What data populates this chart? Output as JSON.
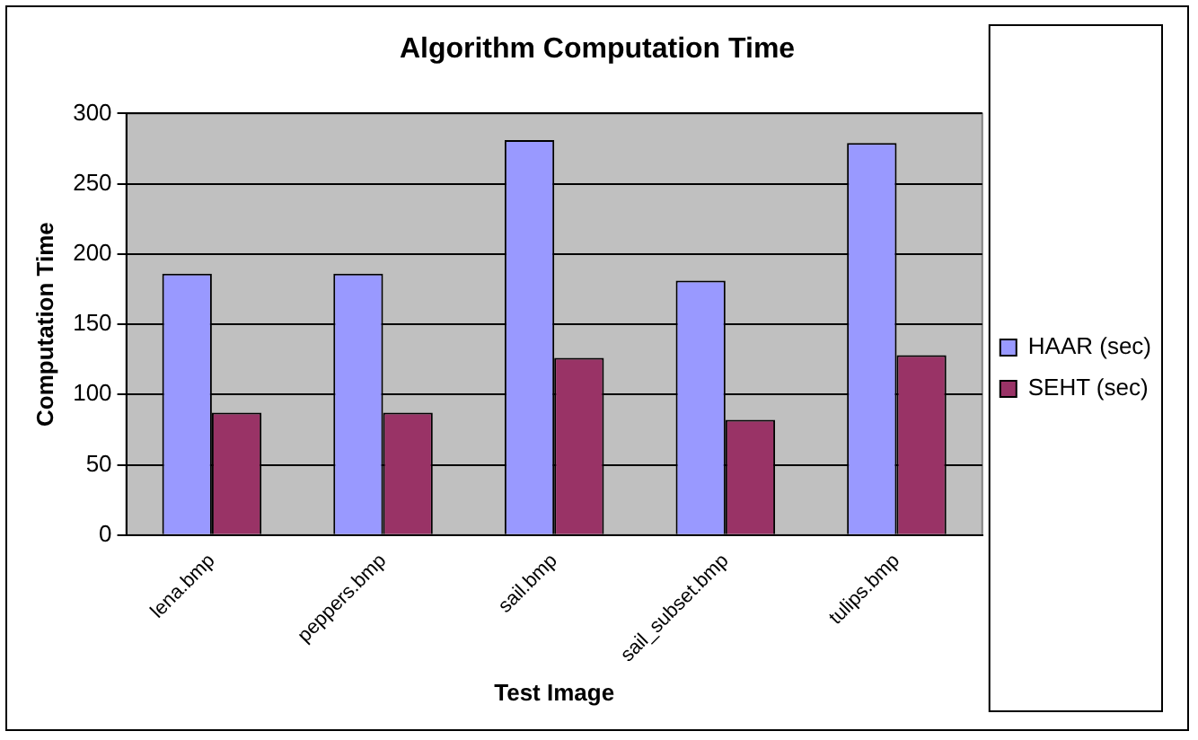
{
  "chart_data": {
    "type": "bar",
    "title": "Algorithm Computation Time",
    "xlabel": "Test Image",
    "ylabel": "Computation Time",
    "categories": [
      "lena.bmp",
      "peppers.bmp",
      "sail.bmp",
      "sail_subset.bmp",
      "tulips.bmp"
    ],
    "series": [
      {
        "name": "HAAR (sec)",
        "color": "#9999ff",
        "values": [
          186,
          186,
          281,
          181,
          279
        ]
      },
      {
        "name": "SEHT (sec)",
        "color": "#993366",
        "values": [
          87,
          87,
          126,
          82,
          128
        ]
      }
    ],
    "ylim": [
      0,
      300
    ],
    "yticks": [
      0,
      50,
      100,
      150,
      200,
      250,
      300
    ],
    "grid": "y",
    "legend": "right"
  }
}
